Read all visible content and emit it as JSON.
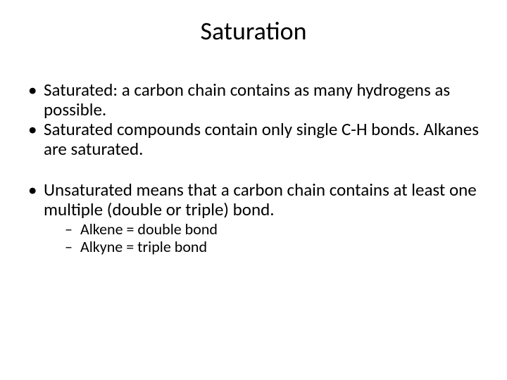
{
  "title": "Saturation",
  "bullets": {
    "b1": "Saturated:  a carbon chain contains as many hydrogens as possible.",
    "b2": "Saturated compounds contain only single C-H bonds.  Alkanes are saturated.",
    "b3": "Unsaturated means that a carbon chain contains at least one multiple (double or triple) bond.",
    "sub1": "Alkene = double bond",
    "sub2": "Alkyne = triple bond"
  },
  "colors": {
    "background": "#ffffff",
    "text": "#000000"
  },
  "typography": {
    "title_fontsize": 36,
    "body_fontsize": 25,
    "sub_fontsize": 22,
    "font_family": "Calibri"
  }
}
